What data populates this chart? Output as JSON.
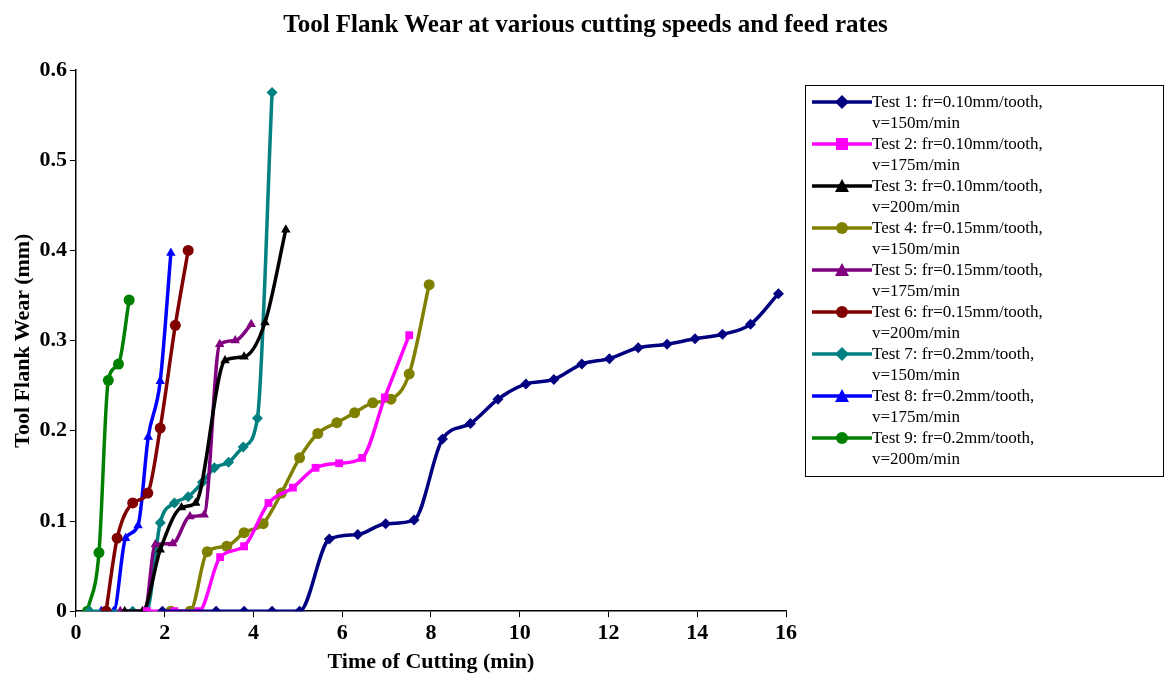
{
  "chart_data": {
    "type": "line",
    "title": "Tool Flank Wear at various cutting speeds and feed rates",
    "xlabel": "Time of Cutting (min)",
    "ylabel": "Tool Flank Wear (mm)",
    "xlim": [
      0,
      16
    ],
    "xticks": [
      0,
      2,
      4,
      6,
      8,
      10,
      12,
      14,
      16
    ],
    "ylim": [
      0,
      0.6
    ],
    "yticks": [
      0,
      0.1,
      0.2,
      0.3,
      0.4,
      0.5,
      0.6
    ],
    "grid": false,
    "legend": "right",
    "series": [
      {
        "name": "Test 1: fr=0.10mm/tooth, v=150m/min",
        "color": "#000080",
        "marker": "diamond",
        "x": [
          1.95,
          3.16,
          3.79,
          4.42,
          5.04,
          5.71,
          6.35,
          6.98,
          7.62,
          8.26,
          8.89,
          9.51,
          10.14,
          10.77,
          11.4,
          12.02,
          12.67,
          13.32,
          13.95,
          14.57,
          15.2,
          15.83
        ],
        "values": [
          0,
          0,
          0,
          0,
          0,
          0.08,
          0.085,
          0.097,
          0.101,
          0.191,
          0.208,
          0.235,
          0.252,
          0.257,
          0.274,
          0.28,
          0.292,
          0.296,
          0.302,
          0.307,
          0.318,
          0.352
        ]
      },
      {
        "name": "Test 2: fr=0.10mm/tooth, v=175m/min",
        "color": "#ff00ff",
        "marker": "square",
        "x": [
          1.6,
          2.22,
          2.77,
          3.25,
          3.79,
          4.34,
          4.89,
          5.4,
          5.93,
          6.45,
          6.96,
          7.51
        ],
        "values": [
          0,
          0,
          0,
          0.06,
          0.072,
          0.12,
          0.137,
          0.159,
          0.164,
          0.17,
          0.237,
          0.306
        ]
      },
      {
        "name": "Test 3: fr=0.10mm/tooth, v=200m/min",
        "color": "#000000",
        "marker": "triangle",
        "x": [
          1.1,
          1.5,
          1.9,
          2.38,
          2.7,
          3.36,
          3.79,
          4.26,
          4.73
        ],
        "values": [
          0,
          0,
          0.068,
          0.115,
          0.12,
          0.278,
          0.282,
          0.32,
          0.423
        ]
      },
      {
        "name": "Test 4: fr=0.15mm/tooth, v=150m/min",
        "color": "#808000",
        "marker": "circle",
        "x": [
          2.14,
          2.57,
          2.96,
          3.4,
          3.79,
          4.22,
          4.63,
          5.04,
          5.45,
          5.88,
          6.28,
          6.69,
          7.1,
          7.51,
          7.96
        ],
        "values": [
          0,
          0,
          0.066,
          0.072,
          0.087,
          0.097,
          0.131,
          0.17,
          0.197,
          0.209,
          0.22,
          0.231,
          0.235,
          0.263,
          0.362
        ]
      },
      {
        "name": "Test 5: fr=0.15mm/tooth, v=175m/min",
        "color": "#800080",
        "marker": "triangle",
        "x": [
          1.0,
          1.55,
          1.79,
          2.18,
          2.57,
          2.89,
          3.24,
          3.59,
          3.95
        ],
        "values": [
          0,
          0,
          0.074,
          0.075,
          0.105,
          0.107,
          0.296,
          0.3,
          0.318
        ]
      },
      {
        "name": "Test 6: fr=0.15mm/tooth, v=200m/min",
        "color": "#800000",
        "marker": "circle",
        "x": [
          0.68,
          0.93,
          1.28,
          1.62,
          1.9,
          2.24,
          2.53
        ],
        "values": [
          0,
          0.081,
          0.12,
          0.131,
          0.203,
          0.317,
          0.4
        ]
      },
      {
        "name": "Test 7: fr=0.2mm/tooth, v=150m/min",
        "color": "#008080",
        "marker": "diamond",
        "x": [
          0.3,
          0.65,
          1.28,
          1.59,
          1.9,
          2.22,
          2.53,
          2.85,
          3.12,
          3.44,
          3.77,
          4.09,
          4.42
        ],
        "values": [
          0,
          0,
          0,
          0,
          0.098,
          0.12,
          0.127,
          0.143,
          0.159,
          0.165,
          0.182,
          0.214,
          0.575
        ]
      },
      {
        "name": "Test 8: fr=0.2mm/tooth, v=175m/min",
        "color": "#0000ff",
        "marker": "triangle",
        "x": [
          0.57,
          0.85,
          1.12,
          1.4,
          1.63,
          1.9,
          2.14
        ],
        "values": [
          0,
          0,
          0.081,
          0.095,
          0.193,
          0.255,
          0.397
        ]
      },
      {
        "name": "Test 9: fr=0.2mm/tooth, v=200m/min",
        "color": "#008000",
        "marker": "circle",
        "x": [
          0.26,
          0.52,
          0.73,
          0.96,
          1.2
        ],
        "values": [
          0,
          0.065,
          0.256,
          0.274,
          0.345
        ]
      }
    ]
  }
}
